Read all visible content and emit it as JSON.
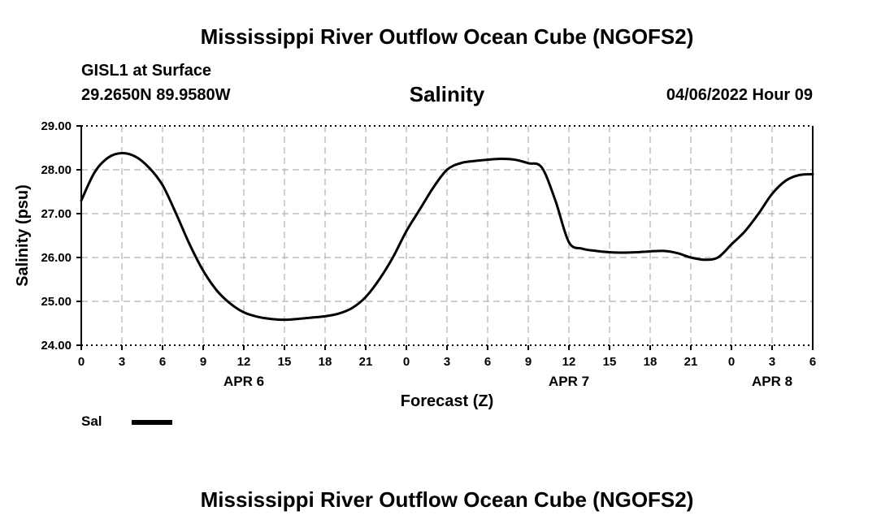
{
  "header": {
    "main_title": "Mississippi River Outflow Ocean Cube (NGOFS2)",
    "station": "GISL1 at Surface",
    "coordinates": "29.2650N  89.9580W",
    "variable": "Salinity",
    "datetime": "04/06/2022 Hour 09"
  },
  "footer": {
    "repeated_title": "Mississippi River Outflow Ocean Cube (NGOFS2)"
  },
  "legend": {
    "label": "Sal",
    "color": "#000000"
  },
  "chart_data": {
    "type": "line",
    "title": "Salinity",
    "xlabel": "Forecast (Z)",
    "ylabel": "Salinity (psu)",
    "xlim": [
      0,
      54
    ],
    "ylim": [
      24.0,
      29.0
    ],
    "grid": true,
    "x_ticks": [
      0,
      3,
      6,
      9,
      12,
      15,
      18,
      21,
      24,
      27,
      30,
      33,
      36,
      39,
      42,
      45,
      48,
      51,
      54
    ],
    "x_tick_labels": [
      "0",
      "3",
      "6",
      "9",
      "12",
      "15",
      "18",
      "21",
      "0",
      "3",
      "6",
      "9",
      "12",
      "15",
      "18",
      "21",
      "0",
      "3",
      "6"
    ],
    "y_ticks": [
      24,
      25,
      26,
      27,
      28,
      29
    ],
    "y_tick_labels": [
      "24.00",
      "25.00",
      "26.00",
      "27.00",
      "28.00",
      "29.00"
    ],
    "date_labels": [
      {
        "hour": 12,
        "label": "APR 6"
      },
      {
        "hour": 36,
        "label": "APR 7"
      },
      {
        "hour": 51,
        "label": "APR 8"
      }
    ],
    "series": [
      {
        "name": "Sal",
        "color": "#000000",
        "x": [
          0,
          1,
          2,
          3,
          4,
          5,
          6,
          7,
          8,
          9,
          10,
          11,
          12,
          13,
          14,
          15,
          16,
          17,
          18,
          19,
          20,
          21,
          22,
          23,
          24,
          25,
          26,
          27,
          28,
          29,
          30,
          31,
          32,
          33,
          34,
          35,
          36,
          37,
          38,
          39,
          40,
          41,
          42,
          43,
          44,
          45,
          46,
          47,
          48,
          49,
          50,
          51,
          52,
          53,
          54
        ],
        "values": [
          27.3,
          27.95,
          28.28,
          28.38,
          28.3,
          28.05,
          27.65,
          27.0,
          26.3,
          25.7,
          25.25,
          24.95,
          24.75,
          24.65,
          24.6,
          24.58,
          24.6,
          24.63,
          24.66,
          24.72,
          24.85,
          25.1,
          25.5,
          26.0,
          26.6,
          27.1,
          27.6,
          28.0,
          28.15,
          28.2,
          28.23,
          28.25,
          28.23,
          28.15,
          28.05,
          27.3,
          26.35,
          26.2,
          26.15,
          26.12,
          26.11,
          26.12,
          26.14,
          26.15,
          26.1,
          26.0,
          25.95,
          26.0,
          26.3,
          26.6,
          27.0,
          27.45,
          27.75,
          27.88,
          27.9
        ]
      }
    ]
  }
}
